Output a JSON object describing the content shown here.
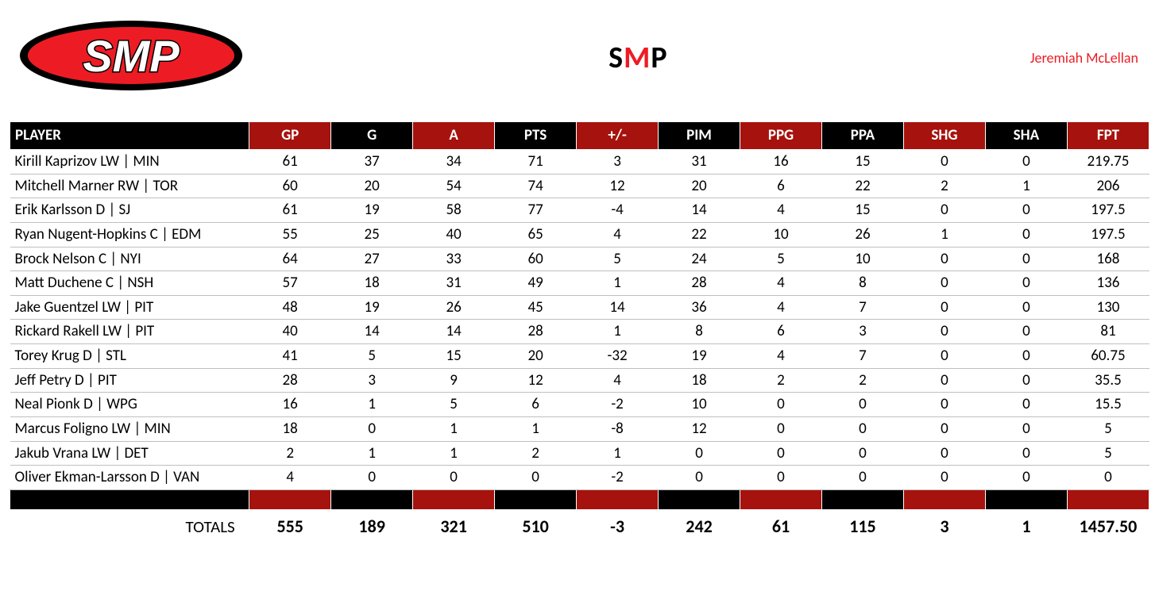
{
  "header": {
    "logo_text": "SMP",
    "title_prefix": "S",
    "title_accent": "M",
    "title_suffix": "P",
    "owner": "Jeremiah McLellan"
  },
  "colors": {
    "red_header": "#a6120d",
    "black": "#000000",
    "logo_red": "#ed1c24",
    "accent_red": "#ed1c24"
  },
  "table": {
    "columns": [
      {
        "key": "player",
        "label": "PLAYER",
        "bg": "black"
      },
      {
        "key": "gp",
        "label": "GP",
        "bg": "red"
      },
      {
        "key": "g",
        "label": "G",
        "bg": "black"
      },
      {
        "key": "a",
        "label": "A",
        "bg": "red"
      },
      {
        "key": "pts",
        "label": "PTS",
        "bg": "black"
      },
      {
        "key": "pm",
        "label": "+/-",
        "bg": "red"
      },
      {
        "key": "pim",
        "label": "PIM",
        "bg": "black"
      },
      {
        "key": "ppg",
        "label": "PPG",
        "bg": "red"
      },
      {
        "key": "ppa",
        "label": "PPA",
        "bg": "black"
      },
      {
        "key": "shg",
        "label": "SHG",
        "bg": "red"
      },
      {
        "key": "sha",
        "label": "SHA",
        "bg": "black"
      },
      {
        "key": "fpt",
        "label": "FPT",
        "bg": "red"
      }
    ],
    "rows": [
      {
        "player": "Kirill Kaprizov LW | MIN",
        "gp": "61",
        "g": "37",
        "a": "34",
        "pts": "71",
        "pm": "3",
        "pim": "31",
        "ppg": "16",
        "ppa": "15",
        "shg": "0",
        "sha": "0",
        "fpt": "219.75"
      },
      {
        "player": "Mitchell Marner RW | TOR",
        "gp": "60",
        "g": "20",
        "a": "54",
        "pts": "74",
        "pm": "12",
        "pim": "20",
        "ppg": "6",
        "ppa": "22",
        "shg": "2",
        "sha": "1",
        "fpt": "206"
      },
      {
        "player": "Erik Karlsson D | SJ",
        "gp": "61",
        "g": "19",
        "a": "58",
        "pts": "77",
        "pm": "-4",
        "pim": "14",
        "ppg": "4",
        "ppa": "15",
        "shg": "0",
        "sha": "0",
        "fpt": "197.5"
      },
      {
        "player": "Ryan Nugent-Hopkins C | EDM",
        "gp": "55",
        "g": "25",
        "a": "40",
        "pts": "65",
        "pm": "4",
        "pim": "22",
        "ppg": "10",
        "ppa": "26",
        "shg": "1",
        "sha": "0",
        "fpt": "197.5"
      },
      {
        "player": "Brock Nelson C | NYI",
        "gp": "64",
        "g": "27",
        "a": "33",
        "pts": "60",
        "pm": "5",
        "pim": "24",
        "ppg": "5",
        "ppa": "10",
        "shg": "0",
        "sha": "0",
        "fpt": "168"
      },
      {
        "player": "Matt Duchene C | NSH",
        "gp": "57",
        "g": "18",
        "a": "31",
        "pts": "49",
        "pm": "1",
        "pim": "28",
        "ppg": "4",
        "ppa": "8",
        "shg": "0",
        "sha": "0",
        "fpt": "136"
      },
      {
        "player": "Jake Guentzel LW | PIT",
        "gp": "48",
        "g": "19",
        "a": "26",
        "pts": "45",
        "pm": "14",
        "pim": "36",
        "ppg": "4",
        "ppa": "7",
        "shg": "0",
        "sha": "0",
        "fpt": "130"
      },
      {
        "player": "Rickard Rakell LW | PIT",
        "gp": "40",
        "g": "14",
        "a": "14",
        "pts": "28",
        "pm": "1",
        "pim": "8",
        "ppg": "6",
        "ppa": "3",
        "shg": "0",
        "sha": "0",
        "fpt": "81"
      },
      {
        "player": "Torey Krug D | STL",
        "gp": "41",
        "g": "5",
        "a": "15",
        "pts": "20",
        "pm": "-32",
        "pim": "19",
        "ppg": "4",
        "ppa": "7",
        "shg": "0",
        "sha": "0",
        "fpt": "60.75"
      },
      {
        "player": "Jeff Petry D | PIT",
        "gp": "28",
        "g": "3",
        "a": "9",
        "pts": "12",
        "pm": "4",
        "pim": "18",
        "ppg": "2",
        "ppa": "2",
        "shg": "0",
        "sha": "0",
        "fpt": "35.5"
      },
      {
        "player": "Neal Pionk D | WPG",
        "gp": "16",
        "g": "1",
        "a": "5",
        "pts": "6",
        "pm": "-2",
        "pim": "10",
        "ppg": "0",
        "ppa": "0",
        "shg": "0",
        "sha": "0",
        "fpt": "15.5"
      },
      {
        "player": "Marcus Foligno LW | MIN",
        "gp": "18",
        "g": "0",
        "a": "1",
        "pts": "1",
        "pm": "-8",
        "pim": "12",
        "ppg": "0",
        "ppa": "0",
        "shg": "0",
        "sha": "0",
        "fpt": "5"
      },
      {
        "player": "Jakub Vrana LW | DET",
        "gp": "2",
        "g": "1",
        "a": "1",
        "pts": "2",
        "pm": "1",
        "pim": "0",
        "ppg": "0",
        "ppa": "0",
        "shg": "0",
        "sha": "0",
        "fpt": "5"
      },
      {
        "player": "Oliver Ekman-Larsson D | VAN",
        "gp": "4",
        "g": "0",
        "a": "0",
        "pts": "0",
        "pm": "-2",
        "pim": "0",
        "ppg": "0",
        "ppa": "0",
        "shg": "0",
        "sha": "0",
        "fpt": "0"
      }
    ],
    "totals": {
      "label": "TOTALS",
      "gp": "555",
      "g": "189",
      "a": "321",
      "pts": "510",
      "pm": "-3",
      "pim": "242",
      "ppg": "61",
      "ppa": "115",
      "shg": "3",
      "sha": "1",
      "fpt": "1457.50"
    }
  }
}
